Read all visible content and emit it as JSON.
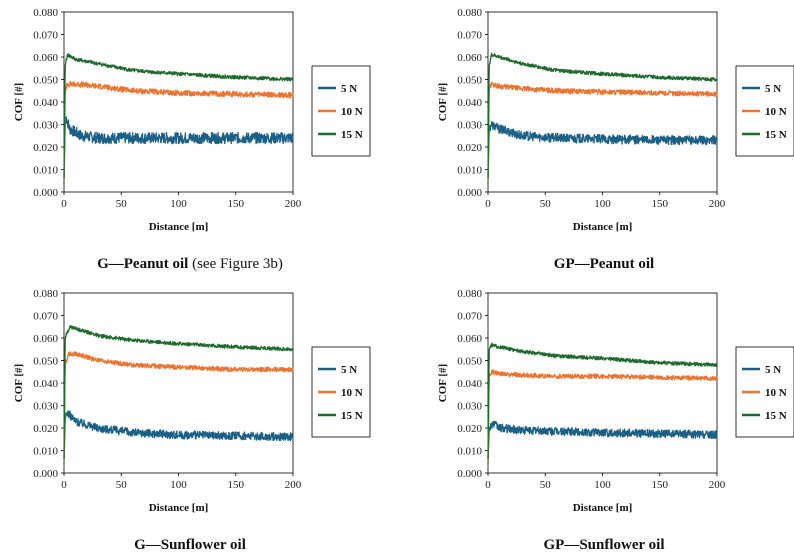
{
  "colors": {
    "s5": "#1a5f86",
    "s10": "#eb7431",
    "s15": "#1d6a2c",
    "axis": "#000000"
  },
  "chart_data": [
    {
      "type": "line",
      "caption_bold": "G—Peanut oil",
      "caption_rest": " (see Figure 3b)",
      "xlabel": "Distance [m]",
      "ylabel": "COF [#]",
      "xlim": [
        0,
        200
      ],
      "ylim": [
        0,
        0.08
      ],
      "xticks": [
        "0",
        "50",
        "100",
        "150",
        "200"
      ],
      "yticks": [
        "0.000",
        "0.010",
        "0.020",
        "0.030",
        "0.040",
        "0.050",
        "0.060",
        "0.070",
        "0.080"
      ],
      "legend_position": "right",
      "series": [
        {
          "name": "5 N",
          "points": [
            [
              0,
              0.004
            ],
            [
              1,
              0.03
            ],
            [
              2,
              0.033
            ],
            [
              5,
              0.028
            ],
            [
              15,
              0.025
            ],
            [
              30,
              0.024
            ],
            [
              60,
              0.024
            ],
            [
              100,
              0.024
            ],
            [
              150,
              0.024
            ],
            [
              200,
              0.024
            ]
          ],
          "noise": 0.0025
        },
        {
          "name": "10 N",
          "points": [
            [
              0,
              0.005
            ],
            [
              1,
              0.045
            ],
            [
              3,
              0.048
            ],
            [
              10,
              0.048
            ],
            [
              30,
              0.047
            ],
            [
              60,
              0.045
            ],
            [
              100,
              0.044
            ],
            [
              150,
              0.0435
            ],
            [
              200,
              0.043
            ]
          ],
          "noise": 0.0012
        },
        {
          "name": "15 N",
          "points": [
            [
              0,
              0.006
            ],
            [
              1,
              0.056
            ],
            [
              3,
              0.061
            ],
            [
              10,
              0.059
            ],
            [
              30,
              0.057
            ],
            [
              60,
              0.054
            ],
            [
              100,
              0.0525
            ],
            [
              150,
              0.051
            ],
            [
              200,
              0.05
            ]
          ],
          "noise": 0.0008
        }
      ]
    },
    {
      "type": "line",
      "caption_bold": "GP—Peanut oil",
      "caption_rest": "",
      "xlabel": "Distance [m]",
      "ylabel": "COF [#]",
      "xlim": [
        0,
        200
      ],
      "ylim": [
        0,
        0.08
      ],
      "xticks": [
        "0",
        "50",
        "100",
        "150",
        "200"
      ],
      "yticks": [
        "0.000",
        "0.010",
        "0.020",
        "0.030",
        "0.040",
        "0.050",
        "0.060",
        "0.070",
        "0.080"
      ],
      "legend_position": "right",
      "series": [
        {
          "name": "5 N",
          "points": [
            [
              0,
              0.004
            ],
            [
              1,
              0.028
            ],
            [
              3,
              0.03
            ],
            [
              10,
              0.028
            ],
            [
              30,
              0.025
            ],
            [
              60,
              0.024
            ],
            [
              100,
              0.0235
            ],
            [
              150,
              0.023
            ],
            [
              200,
              0.023
            ]
          ],
          "noise": 0.002
        },
        {
          "name": "10 N",
          "points": [
            [
              0,
              0.005
            ],
            [
              1,
              0.046
            ],
            [
              3,
              0.048
            ],
            [
              10,
              0.047
            ],
            [
              30,
              0.046
            ],
            [
              60,
              0.045
            ],
            [
              100,
              0.0445
            ],
            [
              150,
              0.044
            ],
            [
              200,
              0.0435
            ]
          ],
          "noise": 0.0011
        },
        {
          "name": "15 N",
          "points": [
            [
              0,
              0.006
            ],
            [
              1,
              0.056
            ],
            [
              3,
              0.061
            ],
            [
              10,
              0.06
            ],
            [
              30,
              0.057
            ],
            [
              60,
              0.054
            ],
            [
              100,
              0.0525
            ],
            [
              150,
              0.051
            ],
            [
              200,
              0.05
            ]
          ],
          "noise": 0.0008
        }
      ]
    },
    {
      "type": "line",
      "caption_bold": "G—Sunflower oil",
      "caption_rest": "",
      "xlabel": "Distance [m]",
      "ylabel": "COF [#]",
      "xlim": [
        0,
        200
      ],
      "ylim": [
        0,
        0.08
      ],
      "xticks": [
        "0",
        "50",
        "100",
        "150",
        "200"
      ],
      "yticks": [
        "0.000",
        "0.010",
        "0.020",
        "0.030",
        "0.040",
        "0.050",
        "0.060",
        "0.070",
        "0.080"
      ],
      "legend_position": "right",
      "series": [
        {
          "name": "5 N",
          "points": [
            [
              0,
              0.004
            ],
            [
              1,
              0.024
            ],
            [
              3,
              0.027
            ],
            [
              10,
              0.023
            ],
            [
              30,
              0.02
            ],
            [
              60,
              0.018
            ],
            [
              100,
              0.017
            ],
            [
              150,
              0.0165
            ],
            [
              200,
              0.016
            ]
          ],
          "noise": 0.0018
        },
        {
          "name": "10 N",
          "points": [
            [
              0,
              0.005
            ],
            [
              1,
              0.048
            ],
            [
              4,
              0.053
            ],
            [
              10,
              0.053
            ],
            [
              30,
              0.05
            ],
            [
              60,
              0.048
            ],
            [
              100,
              0.047
            ],
            [
              150,
              0.046
            ],
            [
              200,
              0.046
            ]
          ],
          "noise": 0.001
        },
        {
          "name": "15 N",
          "points": [
            [
              0,
              0.006
            ],
            [
              1,
              0.06
            ],
            [
              5,
              0.065
            ],
            [
              12,
              0.064
            ],
            [
              30,
              0.061
            ],
            [
              60,
              0.059
            ],
            [
              100,
              0.0575
            ],
            [
              150,
              0.056
            ],
            [
              200,
              0.055
            ]
          ],
          "noise": 0.0008
        }
      ]
    },
    {
      "type": "line",
      "caption_bold": "GP—Sunflower oil",
      "caption_rest": "",
      "xlabel": "Distance [m]",
      "ylabel": "COF [#]",
      "xlim": [
        0,
        200
      ],
      "ylim": [
        0,
        0.08
      ],
      "xticks": [
        "0",
        "50",
        "100",
        "150",
        "200"
      ],
      "yticks": [
        "0.000",
        "0.010",
        "0.020",
        "0.030",
        "0.040",
        "0.050",
        "0.060",
        "0.070",
        "0.080"
      ],
      "legend_position": "right",
      "series": [
        {
          "name": "5 N",
          "points": [
            [
              0,
              0.004
            ],
            [
              1,
              0.02
            ],
            [
              4,
              0.022
            ],
            [
              10,
              0.02
            ],
            [
              30,
              0.019
            ],
            [
              60,
              0.0185
            ],
            [
              100,
              0.018
            ],
            [
              150,
              0.0175
            ],
            [
              200,
              0.017
            ]
          ],
          "noise": 0.0018
        },
        {
          "name": "10 N",
          "points": [
            [
              0,
              0.005
            ],
            [
              1,
              0.043
            ],
            [
              4,
              0.045
            ],
            [
              10,
              0.044
            ],
            [
              30,
              0.0435
            ],
            [
              60,
              0.043
            ],
            [
              100,
              0.043
            ],
            [
              150,
              0.0425
            ],
            [
              200,
              0.042
            ]
          ],
          "noise": 0.001
        },
        {
          "name": "15 N",
          "points": [
            [
              0,
              0.006
            ],
            [
              1,
              0.055
            ],
            [
              3,
              0.057
            ],
            [
              10,
              0.056
            ],
            [
              30,
              0.054
            ],
            [
              60,
              0.052
            ],
            [
              100,
              0.051
            ],
            [
              150,
              0.049
            ],
            [
              200,
              0.048
            ]
          ],
          "noise": 0.0008
        }
      ]
    }
  ]
}
